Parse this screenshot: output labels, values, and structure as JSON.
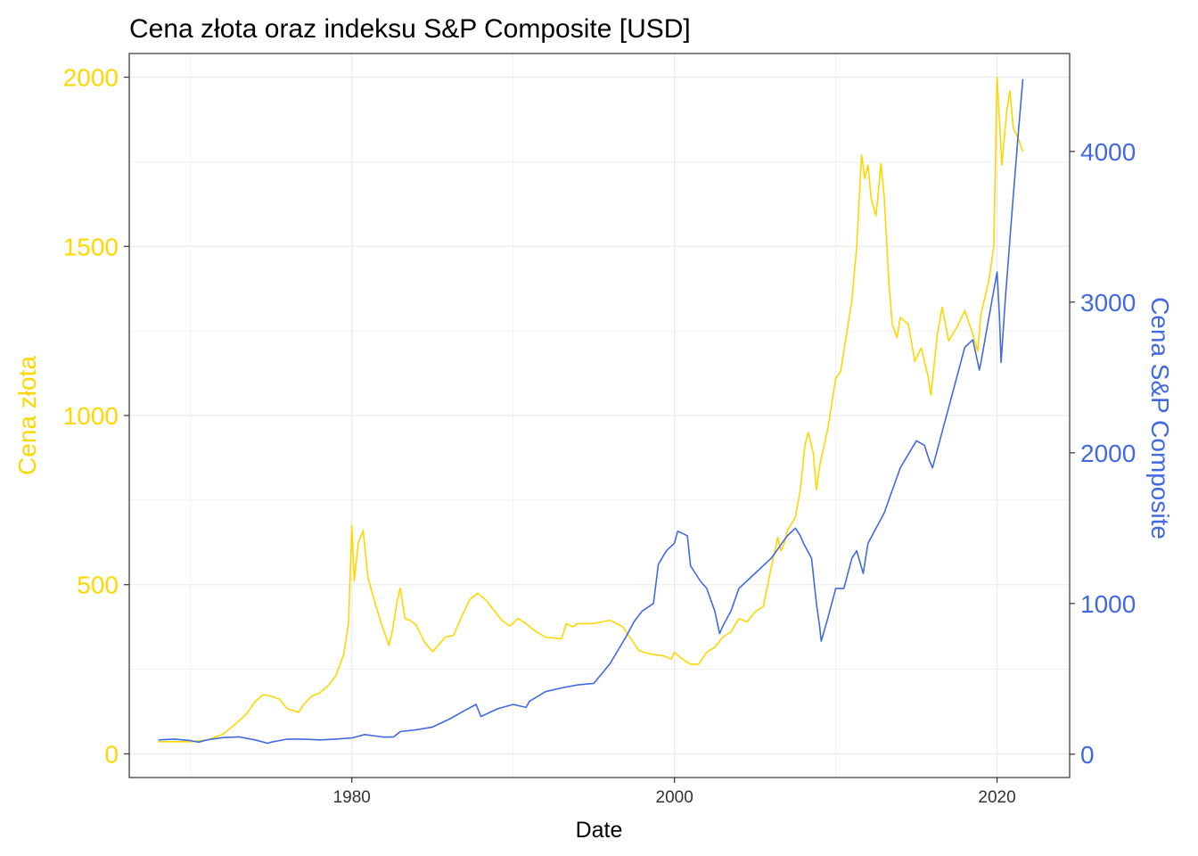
{
  "chart_data": {
    "type": "line",
    "title": "Cena złota oraz indeksu S&P Composite [USD]",
    "xlabel": "Date",
    "ylabel_left": "Cena złota",
    "ylabel_right": "Cena S&P Composite",
    "xlim": [
      1966.2,
      2024.5
    ],
    "ylim_left": [
      -70,
      2070
    ],
    "ylim_right": [
      -155,
      4650
    ],
    "x_ticks": [
      1980,
      2000,
      2020
    ],
    "x_tick_labels": [
      "1980",
      "2000",
      "2020"
    ],
    "y_left_ticks": [
      0,
      500,
      1000,
      1500,
      2000
    ],
    "y_left_tick_labels": [
      "0",
      "500",
      "1000",
      "1500",
      "2000"
    ],
    "y_right_ticks": [
      0,
      1000,
      2000,
      3000,
      4000
    ],
    "y_right_tick_labels": [
      "0",
      "1000",
      "2000",
      "3000",
      "4000"
    ],
    "grid": true,
    "colors": {
      "gold": "#FFD700",
      "sp": "#4169E1",
      "grid": "#EBEBEB",
      "axis": "#333333"
    },
    "series": [
      {
        "axis": "left",
        "x": [
          1968.0,
          1970.0,
          1971.0,
          1972.0,
          1973.0,
          1973.5,
          1974.0,
          1974.5,
          1975.0,
          1975.5,
          1976.0,
          1976.7,
          1977.0,
          1977.5,
          1978.0,
          1978.5,
          1979.0,
          1979.5,
          1979.8,
          1980.0,
          1980.15,
          1980.4,
          1980.7,
          1981.0,
          1981.5,
          1981.9,
          1982.3,
          1982.5,
          1982.8,
          1983.0,
          1983.3,
          1983.6,
          1984.0,
          1984.5,
          1985.0,
          1985.3,
          1985.8,
          1986.3,
          1986.8,
          1987.3,
          1987.8,
          1988.3,
          1988.8,
          1989.3,
          1989.8,
          1990.3,
          1990.8,
          1991.3,
          1992.0,
          1993.0,
          1993.3,
          1993.7,
          1994.0,
          1995.0,
          1996.0,
          1996.8,
          1997.3,
          1997.8,
          1998.5,
          1999.3,
          1999.8,
          2000.0,
          2000.5,
          2001.0,
          2001.5,
          2002.0,
          2002.5,
          2003.0,
          2003.5,
          2004.0,
          2004.5,
          2005.0,
          2005.5,
          2006.0,
          2006.4,
          2006.6,
          2006.8,
          2007.0,
          2007.5,
          2007.8,
          2008.1,
          2008.3,
          2008.6,
          2008.8,
          2009.0,
          2009.5,
          2010.0,
          2010.3,
          2010.7,
          2011.0,
          2011.3,
          2011.6,
          2011.8,
          2012.0,
          2012.2,
          2012.5,
          2012.8,
          2013.0,
          2013.3,
          2013.5,
          2013.8,
          2014.0,
          2014.5,
          2014.9,
          2015.3,
          2015.7,
          2015.9,
          2016.3,
          2016.6,
          2017.0,
          2017.5,
          2018.0,
          2018.5,
          2018.8,
          2019.0,
          2019.5,
          2019.8,
          2020.0,
          2020.3,
          2020.6,
          2020.8,
          2021.0,
          2021.3,
          2021.6
        ],
        "values": [
          36,
          36,
          40,
          58,
          97,
          120,
          154,
          175,
          170,
          162,
          133,
          123,
          145,
          170,
          180,
          200,
          230,
          295,
          390,
          675,
          510,
          625,
          660,
          520,
          435,
          375,
          320,
          360,
          450,
          490,
          400,
          395,
          380,
          330,
          302,
          318,
          345,
          350,
          405,
          455,
          475,
          455,
          425,
          395,
          378,
          400,
          385,
          365,
          345,
          340,
          385,
          375,
          385,
          385,
          395,
          375,
          340,
          305,
          295,
          290,
          280,
          300,
          280,
          265,
          265,
          300,
          315,
          345,
          360,
          400,
          390,
          420,
          435,
          550,
          640,
          600,
          620,
          660,
          700,
          780,
          915,
          950,
          890,
          780,
          850,
          960,
          1110,
          1130,
          1250,
          1340,
          1500,
          1770,
          1700,
          1740,
          1640,
          1590,
          1745,
          1650,
          1390,
          1270,
          1230,
          1290,
          1270,
          1160,
          1200,
          1120,
          1060,
          1240,
          1320,
          1220,
          1260,
          1310,
          1240,
          1190,
          1300,
          1400,
          1500,
          2000,
          1740,
          1900,
          1960,
          1850,
          1820,
          1780
        ]
      },
      {
        "axis": "right",
        "x": [
          1968.0,
          1969.0,
          1970.0,
          1970.5,
          1971.0,
          1972.0,
          1973.0,
          1974.0,
          1974.8,
          1975.0,
          1976.0,
          1977.0,
          1978.0,
          1979.0,
          1980.0,
          1980.8,
          1981.5,
          1982.0,
          1982.6,
          1983.0,
          1984.0,
          1985.0,
          1986.0,
          1987.0,
          1987.7,
          1988.0,
          1989.0,
          1990.0,
          1990.8,
          1991.0,
          1992.0,
          1993.0,
          1994.0,
          1995.0,
          1996.0,
          1997.0,
          1997.5,
          1998.0,
          1998.7,
          1999.0,
          1999.5,
          2000.0,
          2000.2,
          2000.8,
          2001.0,
          2001.6,
          2002.0,
          2002.5,
          2002.8,
          2003.0,
          2003.5,
          2004.0,
          2005.0,
          2006.0,
          2007.0,
          2007.5,
          2007.8,
          2008.0,
          2008.5,
          2008.8,
          2009.0,
          2009.1,
          2009.5,
          2010.0,
          2010.5,
          2011.0,
          2011.3,
          2011.7,
          2012.0,
          2013.0,
          2014.0,
          2015.0,
          2015.5,
          2015.8,
          2016.0,
          2016.5,
          2017.0,
          2018.0,
          2018.5,
          2018.9,
          2019.0,
          2019.5,
          2020.0,
          2020.15,
          2020.25,
          2020.5,
          2021.0,
          2021.3,
          2021.6
        ],
        "values": [
          95,
          100,
          90,
          80,
          95,
          110,
          115,
          95,
          72,
          80,
          100,
          100,
          95,
          100,
          108,
          130,
          120,
          113,
          115,
          150,
          162,
          180,
          230,
          290,
          330,
          250,
          300,
          330,
          310,
          350,
          415,
          440,
          460,
          470,
          600,
          780,
          880,
          950,
          1000,
          1260,
          1350,
          1400,
          1480,
          1450,
          1250,
          1150,
          1100,
          950,
          800,
          850,
          950,
          1100,
          1200,
          1300,
          1450,
          1500,
          1450,
          1400,
          1300,
          1000,
          850,
          750,
          900,
          1100,
          1100,
          1300,
          1350,
          1200,
          1400,
          1600,
          1900,
          2080,
          2050,
          1950,
          1900,
          2100,
          2300,
          2700,
          2750,
          2550,
          2600,
          2900,
          3200,
          2900,
          2600,
          3000,
          3700,
          4100,
          4480
        ]
      }
    ]
  }
}
